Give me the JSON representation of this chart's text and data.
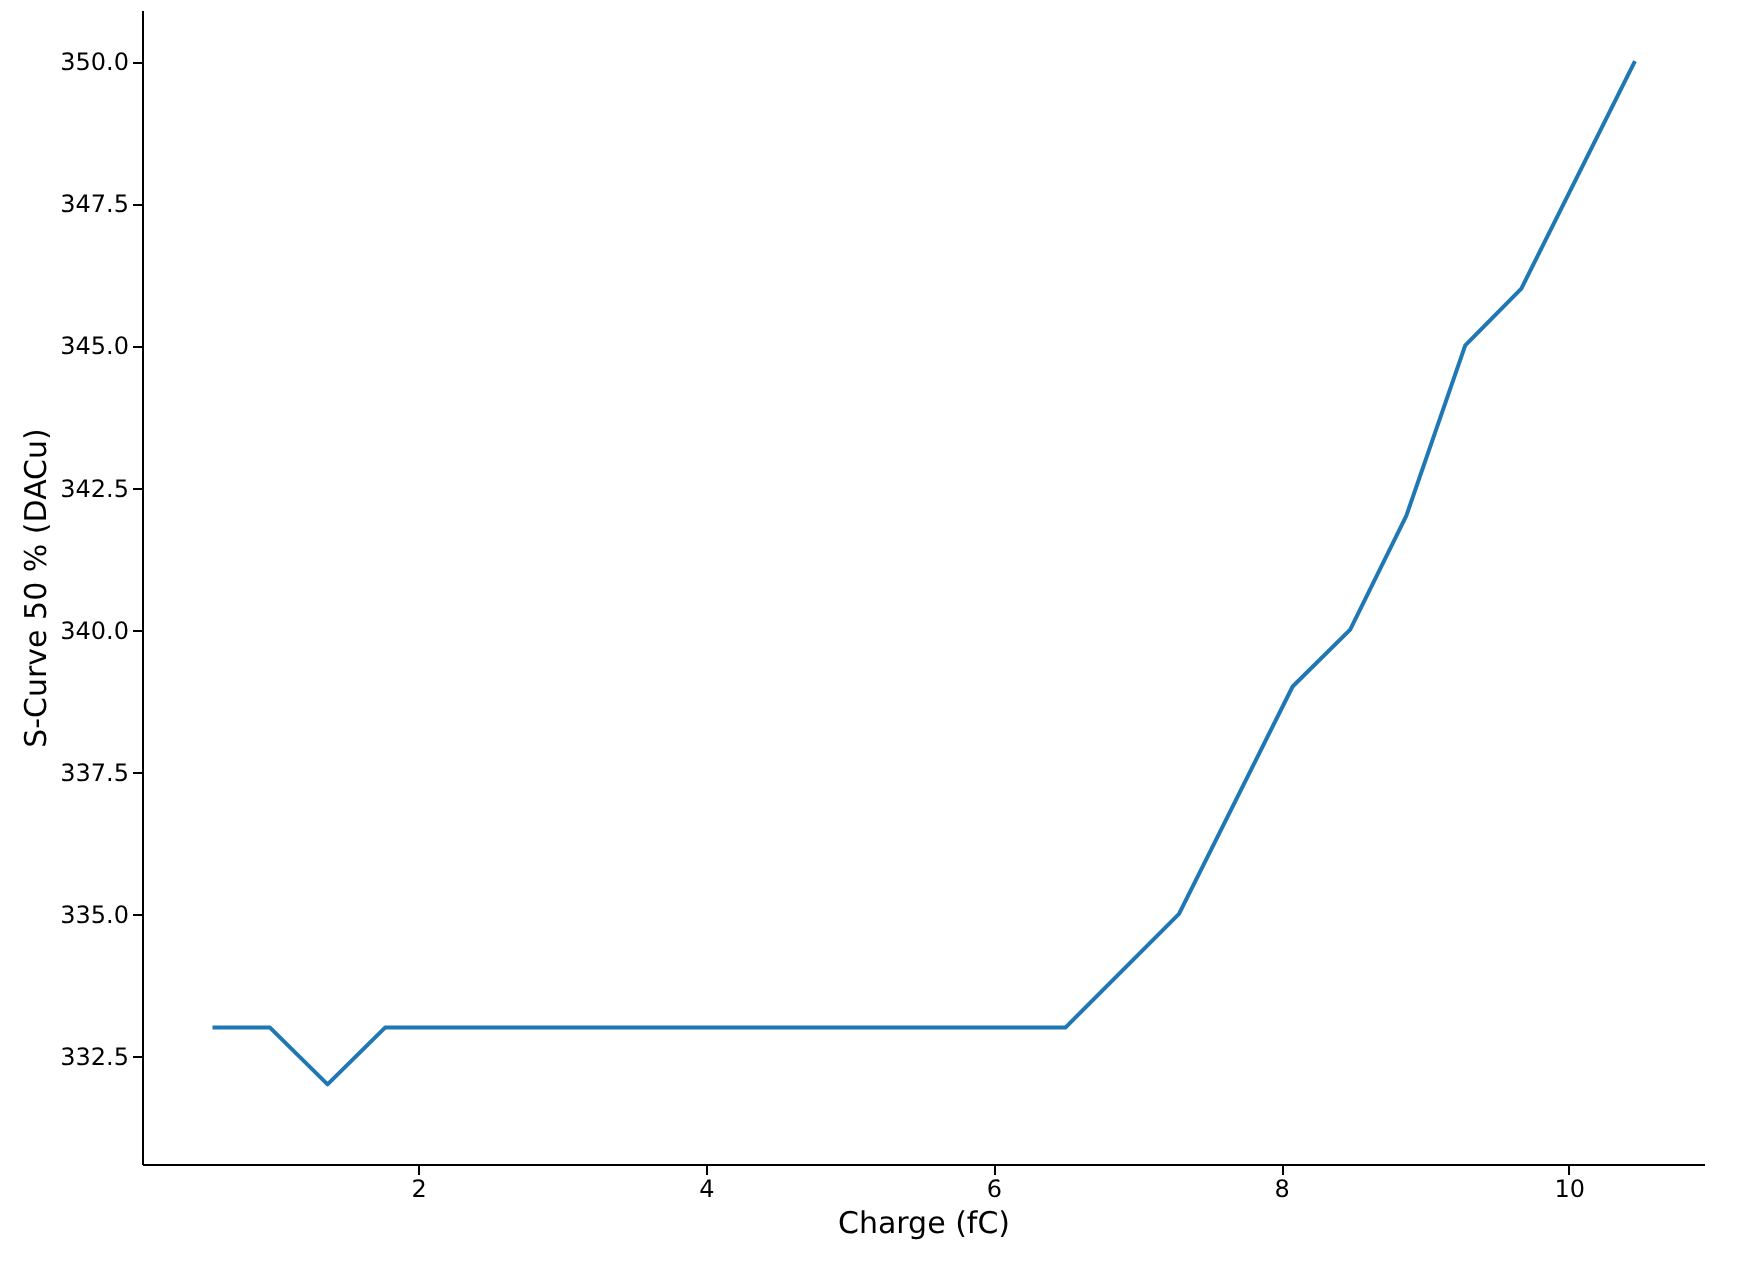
{
  "chart_data": {
    "type": "line",
    "xlabel": "Charge (fC)",
    "ylabel": "S-Curve 50 % (DACu)",
    "x": [
      0.57,
      0.97,
      1.37,
      1.77,
      6.5,
      7.29,
      8.08,
      8.48,
      8.87,
      9.28,
      9.67,
      10.46
    ],
    "series": [
      {
        "color": "#1f77b4",
        "values": [
          333,
          333,
          332,
          333,
          333,
          335,
          339,
          340,
          342,
          345,
          346,
          350
        ]
      }
    ],
    "xlim": [
      0.08,
      10.94
    ],
    "xticks": [
      2,
      4,
      6,
      8,
      10
    ],
    "ylim": [
      330.6,
      350.9
    ],
    "yticks": [
      {
        "value": 332.5,
        "label": "332.5"
      },
      {
        "value": 335,
        "label": "335.0"
      },
      {
        "value": 337.5,
        "label": "337.5"
      },
      {
        "value": 340,
        "label": "340.0"
      },
      {
        "value": 342.5,
        "label": "342.5"
      },
      {
        "value": 345,
        "label": "345.0"
      },
      {
        "value": 347.5,
        "label": "347.5"
      },
      {
        "value": 350,
        "label": "350.0"
      }
    ],
    "grid": false,
    "marker": "none",
    "line_style": "solid"
  }
}
